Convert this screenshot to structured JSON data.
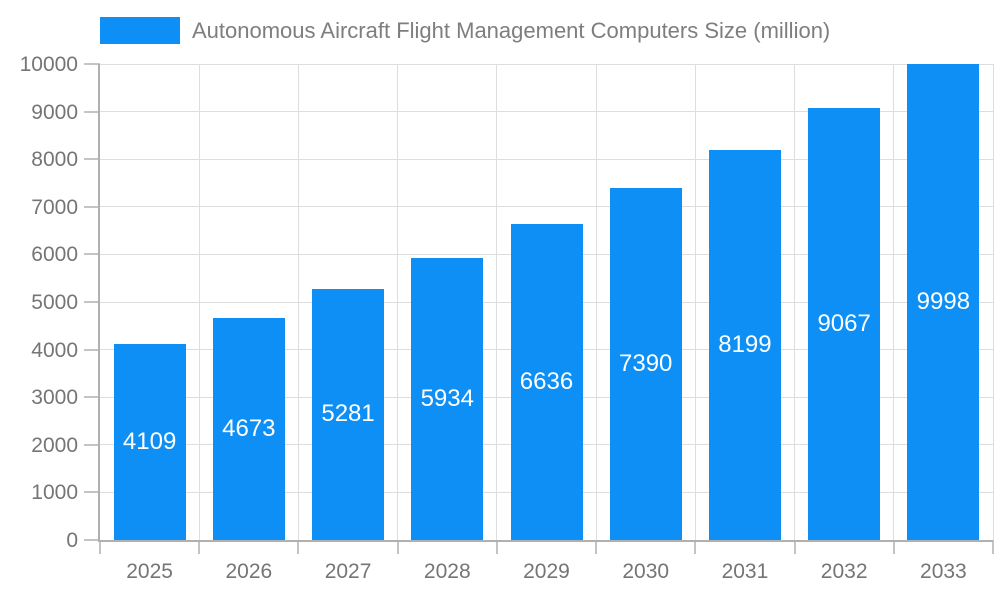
{
  "chart_data": {
    "type": "bar",
    "title": "Autonomous Aircraft Flight Management Computers Size (million)",
    "categories": [
      "2025",
      "2026",
      "2027",
      "2028",
      "2029",
      "2030",
      "2031",
      "2032",
      "2033"
    ],
    "values": [
      4109,
      4673,
      5281,
      5934,
      6636,
      7390,
      8199,
      9067,
      9998
    ],
    "xlabel": "",
    "ylabel": "",
    "ylim": [
      0,
      10000
    ],
    "ytick_step": 1000,
    "grid": true,
    "legend_position": "top-left",
    "bar_labels_inside": true,
    "colors": {
      "bar": "#0D8FF5",
      "bar_label": "#ffffff",
      "grid": "#dedede",
      "axis": "#b0b0b0",
      "tick": "#c4c4c4",
      "text": "#757575",
      "title_text": "#7e7e7e",
      "background": "#ffffff"
    }
  }
}
